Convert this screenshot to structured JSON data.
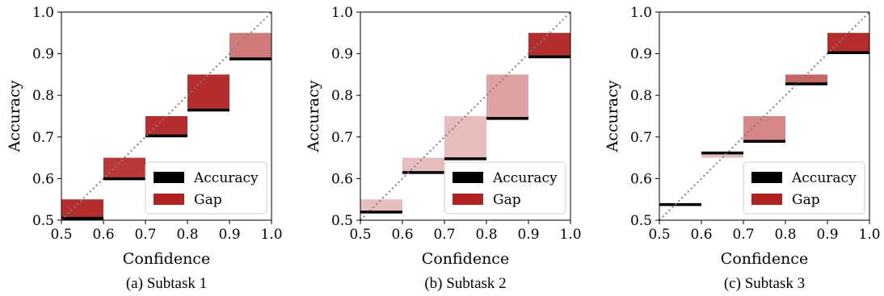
{
  "chart_data": [
    {
      "type": "bar",
      "caption": "(a) Subtask 1",
      "xlabel": "Confidence",
      "ylabel": "Accuracy",
      "xlim": [
        0.5,
        1.0
      ],
      "ylim": [
        0.5,
        1.0
      ],
      "xticks": [
        "0.5",
        "0.6",
        "0.7",
        "0.8",
        "0.9",
        "1.0"
      ],
      "yticks": [
        "0.5",
        "0.6",
        "0.7",
        "0.8",
        "0.9",
        "1.0"
      ],
      "legend": {
        "placement": "lower-right",
        "entries": [
          "Accuracy",
          "Gap"
        ]
      },
      "bins": [
        {
          "x0": 0.5,
          "x1": 0.6,
          "confidence": 0.55,
          "accuracy": 0.505,
          "gap_opacity": 0.95
        },
        {
          "x0": 0.6,
          "x1": 0.7,
          "confidence": 0.65,
          "accuracy": 0.6,
          "gap_opacity": 0.9
        },
        {
          "x0": 0.7,
          "x1": 0.8,
          "confidence": 0.75,
          "accuracy": 0.703,
          "gap_opacity": 0.95
        },
        {
          "x0": 0.8,
          "x1": 0.9,
          "confidence": 0.85,
          "accuracy": 0.765,
          "gap_opacity": 0.95
        },
        {
          "x0": 0.9,
          "x1": 1.0,
          "confidence": 0.95,
          "accuracy": 0.888,
          "gap_opacity": 0.6
        }
      ]
    },
    {
      "type": "bar",
      "caption": "(b) Subtask 2",
      "xlabel": "Confidence",
      "ylabel": "Accuracy",
      "xlim": [
        0.5,
        1.0
      ],
      "ylim": [
        0.5,
        1.0
      ],
      "xticks": [
        "0.5",
        "0.6",
        "0.7",
        "0.8",
        "0.9",
        "1.0"
      ],
      "yticks": [
        "0.5",
        "0.6",
        "0.7",
        "0.8",
        "0.9",
        "1.0"
      ],
      "legend": {
        "placement": "lower-right",
        "entries": [
          "Accuracy",
          "Gap"
        ]
      },
      "bins": [
        {
          "x0": 0.5,
          "x1": 0.6,
          "confidence": 0.55,
          "accuracy": 0.52,
          "gap_opacity": 0.3
        },
        {
          "x0": 0.6,
          "x1": 0.7,
          "confidence": 0.65,
          "accuracy": 0.615,
          "gap_opacity": 0.3
        },
        {
          "x0": 0.7,
          "x1": 0.8,
          "confidence": 0.75,
          "accuracy": 0.648,
          "gap_opacity": 0.3
        },
        {
          "x0": 0.8,
          "x1": 0.9,
          "confidence": 0.85,
          "accuracy": 0.745,
          "gap_opacity": 0.42
        },
        {
          "x0": 0.9,
          "x1": 1.0,
          "confidence": 0.95,
          "accuracy": 0.893,
          "gap_opacity": 0.95
        }
      ]
    },
    {
      "type": "bar",
      "caption": "(c) Subtask 3",
      "xlabel": "Confidence",
      "ylabel": "Accuracy",
      "xlim": [
        0.5,
        1.0
      ],
      "ylim": [
        0.5,
        1.0
      ],
      "xticks": [
        "0.5",
        "0.6",
        "0.7",
        "0.8",
        "0.9",
        "1.0"
      ],
      "yticks": [
        "0.5",
        "0.6",
        "0.7",
        "0.8",
        "0.9",
        "1.0"
      ],
      "legend": {
        "placement": "lower-right",
        "entries": [
          "Accuracy",
          "Gap"
        ]
      },
      "bins": [
        {
          "x0": 0.5,
          "x1": 0.6,
          "confidence": 0.54,
          "accuracy": 0.538,
          "gap_opacity": 0.3
        },
        {
          "x0": 0.6,
          "x1": 0.7,
          "confidence": 0.65,
          "accuracy": 0.662,
          "gap_opacity": 0.3
        },
        {
          "x0": 0.7,
          "x1": 0.8,
          "confidence": 0.75,
          "accuracy": 0.69,
          "gap_opacity": 0.55
        },
        {
          "x0": 0.8,
          "x1": 0.9,
          "confidence": 0.85,
          "accuracy": 0.828,
          "gap_opacity": 0.7
        },
        {
          "x0": 0.9,
          "x1": 1.0,
          "confidence": 0.95,
          "accuracy": 0.903,
          "gap_opacity": 0.95
        }
      ]
    }
  ],
  "colors": {
    "accuracy": "#000000",
    "gap": "#b22222",
    "diagonal": "#808080",
    "axis": "#000000"
  }
}
